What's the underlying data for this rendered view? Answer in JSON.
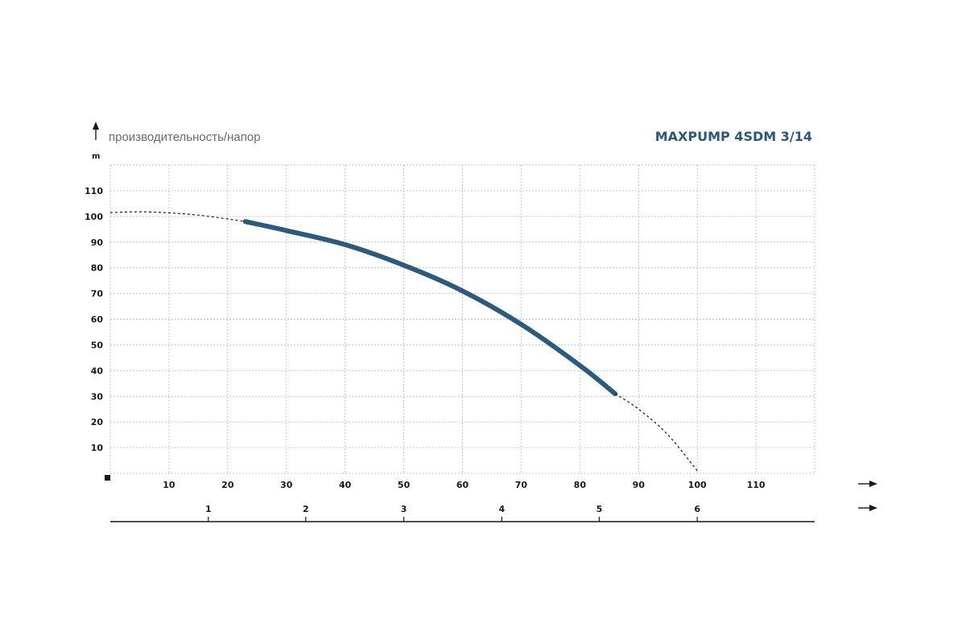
{
  "chart_data": {
    "type": "line",
    "title": "MAXPUMP 4SDM 3/14",
    "ylabel": "производительность/напор",
    "yunit": "m",
    "xlim": [
      0,
      120
    ],
    "ylim": [
      0,
      120
    ],
    "grid": true,
    "x_ticks": [
      10,
      20,
      30,
      40,
      50,
      60,
      70,
      80,
      90,
      100,
      110
    ],
    "y_ticks": [
      10,
      20,
      30,
      40,
      50,
      60,
      70,
      80,
      90,
      100,
      110
    ],
    "secondary_x_ticks": [
      {
        "label": "1",
        "x": 16.7
      },
      {
        "label": "2",
        "x": 33.3
      },
      {
        "label": "3",
        "x": 50
      },
      {
        "label": "4",
        "x": 66.7
      },
      {
        "label": "5",
        "x": 83.3
      },
      {
        "label": "6",
        "x": 100
      }
    ],
    "series": [
      {
        "style": "dashed",
        "x": [
          0,
          5,
          10,
          15,
          20,
          23
        ],
        "y": [
          101.5,
          101.8,
          101.4,
          100.5,
          99,
          98
        ]
      },
      {
        "style": "solid",
        "color": "#2a5a7c",
        "x": [
          23,
          30,
          40,
          50,
          60,
          70,
          80,
          86
        ],
        "y": [
          98,
          94.5,
          89,
          81,
          71,
          58,
          42,
          31
        ]
      },
      {
        "style": "dashed",
        "x": [
          86,
          90,
          95,
          100
        ],
        "y": [
          31,
          25,
          15,
          1
        ]
      }
    ]
  }
}
